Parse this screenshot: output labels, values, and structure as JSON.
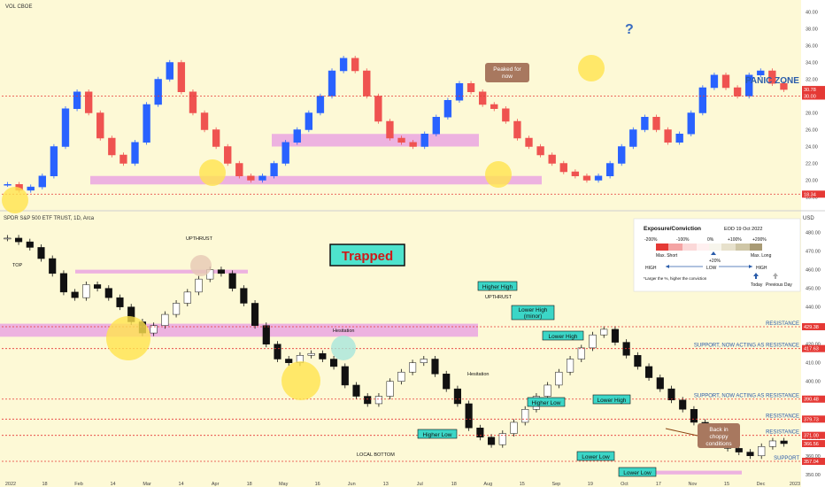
{
  "colors": {
    "up": "#2962ff",
    "down": "#ef5350",
    "spy_up": "#ffffff",
    "spy_down": "#111111",
    "zone": "#e79ae3",
    "red_line": "#e53935",
    "blue_label": "#2a5caa",
    "callout_brown": "#a8785f",
    "teal_box": "#3bd6c7",
    "trapped_bg": "#4ee3cd",
    "trapped_text": "#d01818",
    "yellow_bg": "#fdf9d6"
  },
  "vix_panel": {
    "symbol_label": "VOL CBOE",
    "ticks": [
      "40.00",
      "38.00",
      "36.00",
      "34.00",
      "32.00",
      "30.00",
      "28.00",
      "26.00",
      "24.00",
      "22.00",
      "20.00",
      "18.00"
    ],
    "price_badges": [
      "30.78",
      "30.00",
      "18.34"
    ],
    "annotations": {
      "panic_zone": "PANIC ZONE",
      "peaked": "Peaked for now",
      "question": "?"
    }
  },
  "spy_panel": {
    "symbol_label": "SPDR S&P 500 ETF TRUST, 1D, Arca",
    "currency": "USD",
    "ticks": [
      "480.00",
      "470.00",
      "460.00",
      "450.00",
      "440.00",
      "430.00",
      "420.00",
      "410.00",
      "400.00",
      "390.00",
      "380.00",
      "370.00",
      "360.00",
      "350.00"
    ],
    "price_badges": [
      "429.38",
      "417.63",
      "390.48",
      "379.73",
      "371.00",
      "366.56",
      "357.04"
    ],
    "levels": [
      {
        "label": "RESISTANCE",
        "price": 429.38
      },
      {
        "label": "SUPPORT, NOW ACTING AS RESISTANCE",
        "price": 417.63
      },
      {
        "label": "SUPPORT, NOW ACTING AS RESISTANCE",
        "price": 390.48
      },
      {
        "label": "RESISTANCE",
        "price": 379.73
      },
      {
        "label": "RESISTANCE",
        "price": 371.0
      },
      {
        "label": "SUPPORT",
        "price": 357.04
      }
    ],
    "trapped": "Trapped",
    "labels": {
      "top": "TOP",
      "upthrust1": "UPTHRUST",
      "upthrust2": "UPTHRUST",
      "hesitation1": "Hesitation",
      "hesitation2": "Hesitation",
      "local_bottom": "LOCAL BOTTOM"
    },
    "boxes": {
      "higher_high": "Higher High",
      "lower_high_minor": "Lower High (minor)",
      "lower_high_1": "Lower High",
      "lower_high_2": "Lower High",
      "lower_low_1": "Higher Low",
      "higher_low": "Higher Low",
      "lower_low_a": "Lower Low",
      "lower_low_b": "Lower Low"
    },
    "callout": "Back in choppy conditions"
  },
  "legend": {
    "title": "Exposure/Conviction",
    "date": "EOD 19 Oct 2022",
    "scale": [
      "-200%",
      "-100%",
      "0%",
      "+100%",
      "+200%"
    ],
    "marker_label": "+20%",
    "max_short": "Max. Short",
    "max_long": "Max. Long",
    "high_left": "HIGH",
    "low": "LOW",
    "high_right": "HIGH",
    "note": "*Larger the %, higher the conviction",
    "today": "Today",
    "previous": "Previous Day"
  },
  "x_axis": {
    "labels": [
      "2022",
      "18",
      "Feb",
      "14",
      "Mar",
      "14",
      "Apr",
      "18",
      "May",
      "16",
      "Jun",
      "13",
      "Jul",
      "18",
      "Aug",
      "15",
      "Sep",
      "19",
      "Oct",
      "17",
      "Nov",
      "15",
      "Dec",
      "2023"
    ]
  },
  "chart_data": [
    {
      "type": "candlestick",
      "series": [
        {
          "name": "VOL CBOE",
          "values": [
            19.5,
            18.8,
            19.2,
            20.5,
            24.0,
            28.5,
            30.5,
            28.0,
            25.0,
            23.0,
            22.0,
            24.5,
            29.0,
            32.0,
            34.0,
            30.5,
            28.0,
            26.0,
            24.0,
            22.0,
            20.5,
            20.0,
            20.5,
            22.0,
            24.5,
            26.0,
            28.0,
            30.0,
            33.0,
            34.5,
            33.0,
            30.0,
            27.0,
            25.0,
            24.5,
            24.0,
            25.5,
            27.5,
            29.5,
            31.5,
            30.5,
            29.0,
            28.5,
            27.0,
            25.0,
            24.0,
            23.0,
            22.0,
            21.0,
            20.5,
            20.0,
            20.5,
            22.0,
            24.0,
            26.0,
            27.5,
            26.0,
            24.5,
            25.5,
            28.0,
            31.0,
            32.5,
            31.0,
            30.0,
            32.5,
            33.0,
            31.5,
            30.78
          ]
        }
      ],
      "ylim": [
        17.0,
        41.0
      ],
      "reference_lines": [
        30.0,
        18.34
      ],
      "zones": [
        [
          19.5,
          20.5
        ],
        [
          24.0,
          25.5
        ]
      ]
    },
    {
      "type": "candlestick",
      "series": [
        {
          "name": "SPDR S&P 500 ETF TRUST",
          "values": [
            477,
            475,
            472,
            466,
            458,
            448,
            445,
            452,
            450,
            445,
            440,
            432,
            426,
            430,
            436,
            442,
            448,
            455,
            460,
            458,
            450,
            442,
            430,
            420,
            412,
            410,
            414,
            415,
            412,
            408,
            398,
            392,
            388,
            392,
            400,
            405,
            410,
            412,
            404,
            396,
            388,
            375,
            370,
            366,
            372,
            378,
            385,
            392,
            398,
            405,
            412,
            418,
            425,
            428,
            421,
            414,
            408,
            402,
            396,
            390,
            385,
            378,
            372,
            366,
            364,
            362,
            360,
            365,
            368,
            366.56
          ]
        }
      ],
      "ylim": [
        348,
        486
      ],
      "zones": [
        [
          424,
          431
        ],
        [
          458,
          460
        ],
        [
          350,
          352
        ]
      ]
    }
  ]
}
